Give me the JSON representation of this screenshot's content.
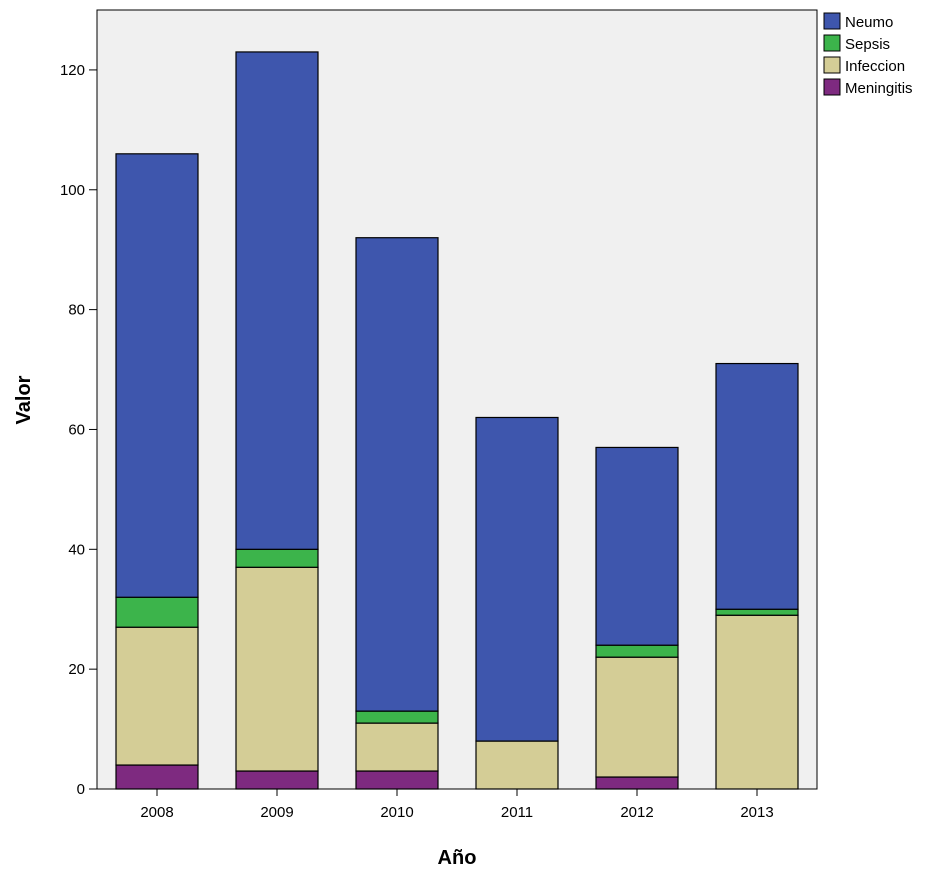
{
  "chart_data": {
    "type": "bar",
    "stacked": true,
    "categories": [
      "2008",
      "2009",
      "2010",
      "2011",
      "2012",
      "2013"
    ],
    "series": [
      {
        "name": "Meningitis",
        "color": "#7e2a80",
        "values": [
          4,
          3,
          3,
          0,
          2,
          0
        ]
      },
      {
        "name": "Infeccion",
        "color": "#d4cd96",
        "values": [
          23,
          34,
          8,
          8,
          20,
          29
        ]
      },
      {
        "name": "Sepsis",
        "color": "#3cb44b",
        "values": [
          5,
          3,
          2,
          0,
          2,
          1
        ]
      },
      {
        "name": "Neumo",
        "color": "#3e56ad",
        "values": [
          74,
          83,
          79,
          54,
          33,
          41
        ]
      }
    ],
    "legend_order": [
      "Neumo",
      "Sepsis",
      "Infeccion",
      "Meningitis"
    ],
    "xlabel": "Año",
    "ylabel": "Valor",
    "ylim": [
      0,
      130
    ],
    "yticks": [
      0,
      20,
      40,
      60,
      80,
      100,
      120
    ],
    "grid": false,
    "legend_position": "top-right",
    "plot_background": "#f0f0f0"
  }
}
